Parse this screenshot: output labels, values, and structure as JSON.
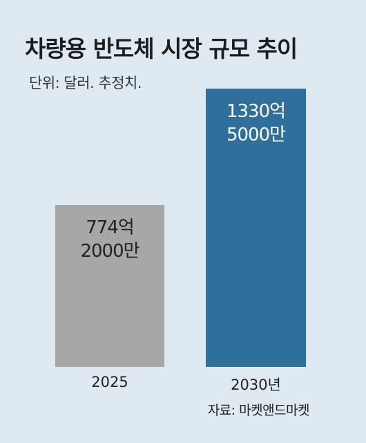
{
  "chart_data": {
    "type": "bar",
    "title": "차량용 반도체 시장 규모 추이",
    "subtitle": "단위: 달러. 추정치.",
    "categories": [
      "2025",
      "2030년"
    ],
    "values": [
      77420000000,
      133050000000
    ],
    "value_labels": [
      "774억\n2000만",
      "1330억\n5000만"
    ],
    "colors": [
      "#a7a7a7",
      "#2f6f9c"
    ],
    "label_colors": [
      "#222222",
      "#ffffff"
    ],
    "source": "자료: 마켓앤드마켓"
  }
}
